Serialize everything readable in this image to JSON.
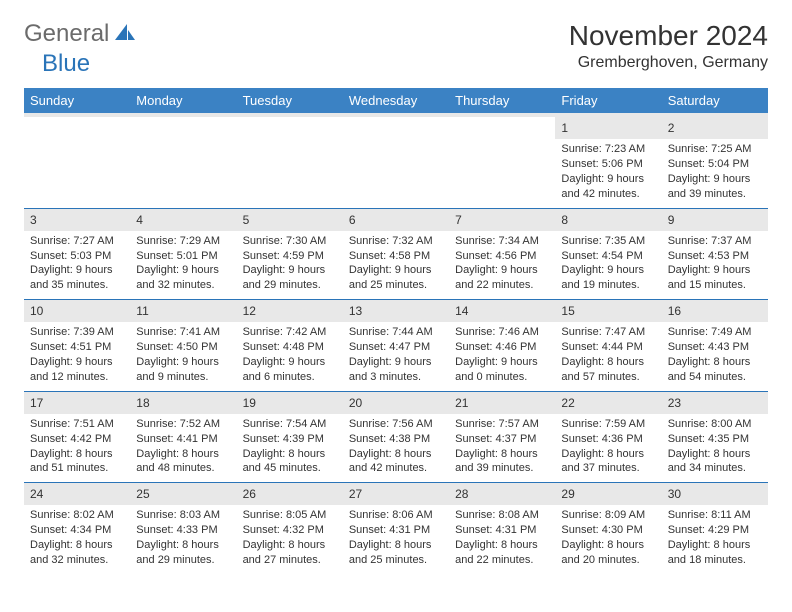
{
  "logo": {
    "part1": "General",
    "part2": "Blue"
  },
  "title": "November 2024",
  "location": "Gremberghoven, Germany",
  "colors": {
    "header_bg": "#3b82c4",
    "daynum_bg": "#e8e8e8",
    "row_border": "#2a74b8",
    "logo_gray": "#6b6b6b",
    "logo_blue": "#2a74b8"
  },
  "fonts": {
    "title_size": 28,
    "location_size": 16,
    "th_size": 13,
    "cell_size": 11
  },
  "day_labels": [
    "Sunday",
    "Monday",
    "Tuesday",
    "Wednesday",
    "Thursday",
    "Friday",
    "Saturday"
  ],
  "weeks": [
    [
      null,
      null,
      null,
      null,
      null,
      {
        "d": "1",
        "sr": "7:23 AM",
        "ss": "5:06 PM",
        "dl": "9 hours and 42 minutes."
      },
      {
        "d": "2",
        "sr": "7:25 AM",
        "ss": "5:04 PM",
        "dl": "9 hours and 39 minutes."
      }
    ],
    [
      {
        "d": "3",
        "sr": "7:27 AM",
        "ss": "5:03 PM",
        "dl": "9 hours and 35 minutes."
      },
      {
        "d": "4",
        "sr": "7:29 AM",
        "ss": "5:01 PM",
        "dl": "9 hours and 32 minutes."
      },
      {
        "d": "5",
        "sr": "7:30 AM",
        "ss": "4:59 PM",
        "dl": "9 hours and 29 minutes."
      },
      {
        "d": "6",
        "sr": "7:32 AM",
        "ss": "4:58 PM",
        "dl": "9 hours and 25 minutes."
      },
      {
        "d": "7",
        "sr": "7:34 AM",
        "ss": "4:56 PM",
        "dl": "9 hours and 22 minutes."
      },
      {
        "d": "8",
        "sr": "7:35 AM",
        "ss": "4:54 PM",
        "dl": "9 hours and 19 minutes."
      },
      {
        "d": "9",
        "sr": "7:37 AM",
        "ss": "4:53 PM",
        "dl": "9 hours and 15 minutes."
      }
    ],
    [
      {
        "d": "10",
        "sr": "7:39 AM",
        "ss": "4:51 PM",
        "dl": "9 hours and 12 minutes."
      },
      {
        "d": "11",
        "sr": "7:41 AM",
        "ss": "4:50 PM",
        "dl": "9 hours and 9 minutes."
      },
      {
        "d": "12",
        "sr": "7:42 AM",
        "ss": "4:48 PM",
        "dl": "9 hours and 6 minutes."
      },
      {
        "d": "13",
        "sr": "7:44 AM",
        "ss": "4:47 PM",
        "dl": "9 hours and 3 minutes."
      },
      {
        "d": "14",
        "sr": "7:46 AM",
        "ss": "4:46 PM",
        "dl": "9 hours and 0 minutes."
      },
      {
        "d": "15",
        "sr": "7:47 AM",
        "ss": "4:44 PM",
        "dl": "8 hours and 57 minutes."
      },
      {
        "d": "16",
        "sr": "7:49 AM",
        "ss": "4:43 PM",
        "dl": "8 hours and 54 minutes."
      }
    ],
    [
      {
        "d": "17",
        "sr": "7:51 AM",
        "ss": "4:42 PM",
        "dl": "8 hours and 51 minutes."
      },
      {
        "d": "18",
        "sr": "7:52 AM",
        "ss": "4:41 PM",
        "dl": "8 hours and 48 minutes."
      },
      {
        "d": "19",
        "sr": "7:54 AM",
        "ss": "4:39 PM",
        "dl": "8 hours and 45 minutes."
      },
      {
        "d": "20",
        "sr": "7:56 AM",
        "ss": "4:38 PM",
        "dl": "8 hours and 42 minutes."
      },
      {
        "d": "21",
        "sr": "7:57 AM",
        "ss": "4:37 PM",
        "dl": "8 hours and 39 minutes."
      },
      {
        "d": "22",
        "sr": "7:59 AM",
        "ss": "4:36 PM",
        "dl": "8 hours and 37 minutes."
      },
      {
        "d": "23",
        "sr": "8:00 AM",
        "ss": "4:35 PM",
        "dl": "8 hours and 34 minutes."
      }
    ],
    [
      {
        "d": "24",
        "sr": "8:02 AM",
        "ss": "4:34 PM",
        "dl": "8 hours and 32 minutes."
      },
      {
        "d": "25",
        "sr": "8:03 AM",
        "ss": "4:33 PM",
        "dl": "8 hours and 29 minutes."
      },
      {
        "d": "26",
        "sr": "8:05 AM",
        "ss": "4:32 PM",
        "dl": "8 hours and 27 minutes."
      },
      {
        "d": "27",
        "sr": "8:06 AM",
        "ss": "4:31 PM",
        "dl": "8 hours and 25 minutes."
      },
      {
        "d": "28",
        "sr": "8:08 AM",
        "ss": "4:31 PM",
        "dl": "8 hours and 22 minutes."
      },
      {
        "d": "29",
        "sr": "8:09 AM",
        "ss": "4:30 PM",
        "dl": "8 hours and 20 minutes."
      },
      {
        "d": "30",
        "sr": "8:11 AM",
        "ss": "4:29 PM",
        "dl": "8 hours and 18 minutes."
      }
    ]
  ],
  "labels": {
    "sunrise": "Sunrise:",
    "sunset": "Sunset:",
    "daylight": "Daylight:"
  }
}
